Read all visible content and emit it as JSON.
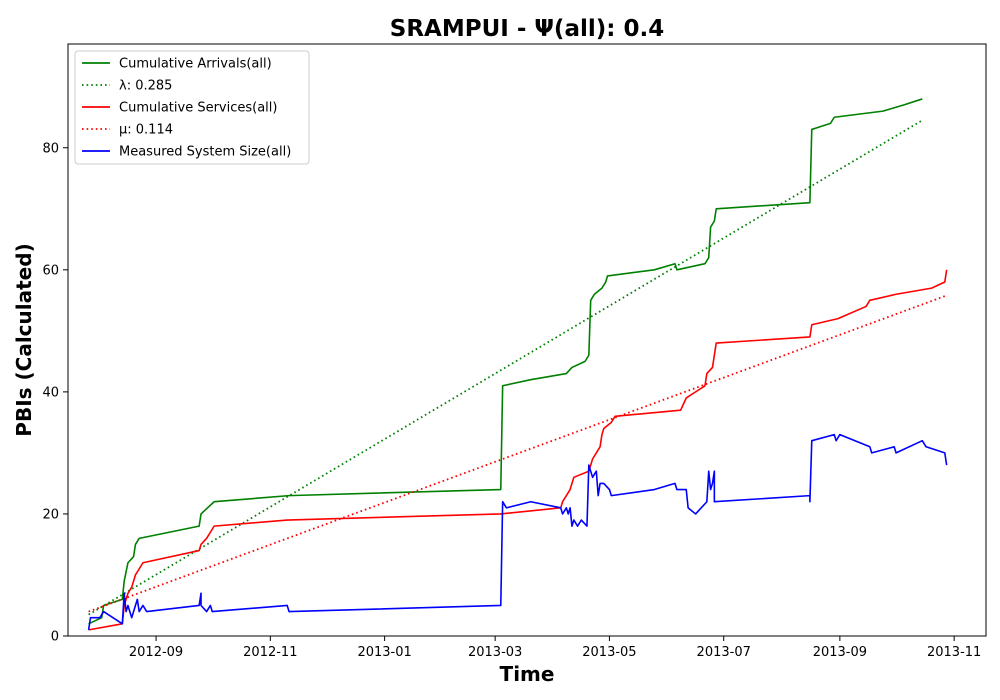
{
  "chart_data": {
    "type": "line",
    "title": "SRAMPUI -  Ψ(all): 0.4",
    "xlabel": "Time",
    "ylabel": "PBIs (Calculated)",
    "x_ticks": [
      "2012-09",
      "2012-11",
      "2013-01",
      "2013-03",
      "2013-05",
      "2013-07",
      "2013-09",
      "2013-11"
    ],
    "y_ticks": [
      "0",
      "20",
      "40",
      "60",
      "80"
    ],
    "xlim": [
      "2012-07-16",
      "2013-11-18"
    ],
    "ylim": [
      0,
      97
    ],
    "legend_position": "upper-left",
    "grid": false,
    "series": [
      {
        "name": "Cumulative Arrivals(all)",
        "color": "#008000",
        "style": "solid",
        "points": [
          [
            "2012-07-27",
            2
          ],
          [
            "2012-08-03",
            3
          ],
          [
            "2012-08-04",
            5
          ],
          [
            "2012-08-14",
            6
          ],
          [
            "2012-08-15",
            9
          ],
          [
            "2012-08-17",
            12
          ],
          [
            "2012-08-20",
            13
          ],
          [
            "2012-08-21",
            15
          ],
          [
            "2012-08-23",
            16
          ],
          [
            "2012-09-24",
            18
          ],
          [
            "2012-09-25",
            20
          ],
          [
            "2012-10-02",
            22
          ],
          [
            "2012-11-11",
            23
          ],
          [
            "2013-03-04",
            24
          ],
          [
            "2013-03-05",
            41
          ],
          [
            "2013-03-20",
            42
          ],
          [
            "2013-04-08",
            43
          ],
          [
            "2013-04-11",
            44
          ],
          [
            "2013-04-18",
            45
          ],
          [
            "2013-04-20",
            46
          ],
          [
            "2013-04-21",
            55
          ],
          [
            "2013-04-23",
            56
          ],
          [
            "2013-04-27",
            57
          ],
          [
            "2013-04-29",
            58
          ],
          [
            "2013-04-30",
            59
          ],
          [
            "2013-05-25",
            60
          ],
          [
            "2013-06-05",
            61
          ],
          [
            "2013-06-06",
            60
          ],
          [
            "2013-06-21",
            61
          ],
          [
            "2013-06-23",
            62
          ],
          [
            "2013-06-24",
            67
          ],
          [
            "2013-06-26",
            68
          ],
          [
            "2013-06-27",
            70
          ],
          [
            "2013-08-16",
            71
          ],
          [
            "2013-08-17",
            83
          ],
          [
            "2013-08-27",
            84
          ],
          [
            "2013-08-29",
            85
          ],
          [
            "2013-09-24",
            86
          ],
          [
            "2013-10-05",
            87
          ],
          [
            "2013-10-15",
            88
          ]
        ]
      },
      {
        "name": "λ: 0.285",
        "color": "#008000",
        "style": "dotted",
        "points": [
          [
            "2012-07-27",
            3.5
          ],
          [
            "2013-10-15",
            84.5
          ]
        ]
      },
      {
        "name": "Cumulative Services(all)",
        "color": "#ff0000",
        "style": "solid",
        "points": [
          [
            "2012-07-27",
            1
          ],
          [
            "2012-08-14",
            2
          ],
          [
            "2012-08-15",
            5
          ],
          [
            "2012-08-17",
            7
          ],
          [
            "2012-08-19",
            8
          ],
          [
            "2012-08-21",
            10
          ],
          [
            "2012-08-23",
            11
          ],
          [
            "2012-08-25",
            12
          ],
          [
            "2012-09-24",
            14
          ],
          [
            "2012-09-25",
            15
          ],
          [
            "2012-09-28",
            16
          ],
          [
            "2012-09-30",
            17
          ],
          [
            "2012-10-02",
            18
          ],
          [
            "2012-11-10",
            19
          ],
          [
            "2013-03-04",
            20
          ],
          [
            "2013-04-05",
            21
          ],
          [
            "2013-04-06",
            22
          ],
          [
            "2013-04-10",
            24
          ],
          [
            "2013-04-12",
            26
          ],
          [
            "2013-04-20",
            27
          ],
          [
            "2013-04-22",
            29
          ],
          [
            "2013-04-26",
            31
          ],
          [
            "2013-04-27",
            33
          ],
          [
            "2013-04-28",
            34
          ],
          [
            "2013-05-02",
            35
          ],
          [
            "2013-05-04",
            36
          ],
          [
            "2013-06-08",
            37
          ],
          [
            "2013-06-11",
            39
          ],
          [
            "2013-06-16",
            40
          ],
          [
            "2013-06-21",
            41
          ],
          [
            "2013-06-22",
            43
          ],
          [
            "2013-06-25",
            44
          ],
          [
            "2013-06-27",
            48
          ],
          [
            "2013-08-16",
            49
          ],
          [
            "2013-08-17",
            51
          ],
          [
            "2013-08-31",
            52
          ],
          [
            "2013-09-15",
            54
          ],
          [
            "2013-09-17",
            55
          ],
          [
            "2013-10-01",
            56
          ],
          [
            "2013-10-20",
            57
          ],
          [
            "2013-10-27",
            58
          ],
          [
            "2013-10-28",
            60
          ]
        ]
      },
      {
        "name": "μ: 0.114",
        "color": "#ff0000",
        "style": "dotted",
        "points": [
          [
            "2012-07-27",
            4
          ],
          [
            "2013-10-28",
            55.8
          ]
        ]
      },
      {
        "name": "Measured System Size(all)",
        "color": "#0000ff",
        "style": "solid",
        "points": [
          [
            "2012-07-27",
            1
          ],
          [
            "2012-07-28",
            3
          ],
          [
            "2012-08-02",
            3
          ],
          [
            "2012-08-04",
            4
          ],
          [
            "2012-08-14",
            2
          ],
          [
            "2012-08-15",
            7
          ],
          [
            "2012-08-16",
            4
          ],
          [
            "2012-08-17",
            5
          ],
          [
            "2012-08-19",
            3
          ],
          [
            "2012-08-21",
            5
          ],
          [
            "2012-08-22",
            6
          ],
          [
            "2012-08-23",
            4
          ],
          [
            "2012-08-25",
            5
          ],
          [
            "2012-08-27",
            4
          ],
          [
            "2012-09-24",
            5
          ],
          [
            "2012-09-25",
            7
          ],
          [
            "2012-09-25",
            5
          ],
          [
            "2012-09-28",
            4
          ],
          [
            "2012-09-30",
            5
          ],
          [
            "2012-10-01",
            4
          ],
          [
            "2012-11-10",
            5
          ],
          [
            "2012-11-11",
            4
          ],
          [
            "2013-03-04",
            5
          ],
          [
            "2013-03-05",
            22
          ],
          [
            "2013-03-07",
            21
          ],
          [
            "2013-03-20",
            22
          ],
          [
            "2013-04-05",
            21
          ],
          [
            "2013-04-06",
            20
          ],
          [
            "2013-04-08",
            21
          ],
          [
            "2013-04-09",
            20
          ],
          [
            "2013-04-10",
            21
          ],
          [
            "2013-04-11",
            18
          ],
          [
            "2013-04-12",
            19
          ],
          [
            "2013-04-14",
            18
          ],
          [
            "2013-04-16",
            19
          ],
          [
            "2013-04-19",
            18
          ],
          [
            "2013-04-20",
            28
          ],
          [
            "2013-04-22",
            26
          ],
          [
            "2013-04-24",
            27
          ],
          [
            "2013-04-25",
            23
          ],
          [
            "2013-04-26",
            25
          ],
          [
            "2013-04-28",
            25
          ],
          [
            "2013-05-01",
            24
          ],
          [
            "2013-05-02",
            23
          ],
          [
            "2013-05-25",
            24
          ],
          [
            "2013-06-05",
            25
          ],
          [
            "2013-06-06",
            24
          ],
          [
            "2013-06-11",
            24
          ],
          [
            "2013-06-12",
            21
          ],
          [
            "2013-06-16",
            20
          ],
          [
            "2013-06-22",
            22
          ],
          [
            "2013-06-23",
            27
          ],
          [
            "2013-06-24",
            24
          ],
          [
            "2013-06-25",
            25
          ],
          [
            "2013-06-26",
            27
          ],
          [
            "2013-06-26",
            22
          ],
          [
            "2013-08-16",
            23
          ],
          [
            "2013-08-16",
            22
          ],
          [
            "2013-08-17",
            32
          ],
          [
            "2013-08-29",
            33
          ],
          [
            "2013-08-30",
            32
          ],
          [
            "2013-09-01",
            33
          ],
          [
            "2013-09-17",
            31
          ],
          [
            "2013-09-18",
            30
          ],
          [
            "2013-09-30",
            31
          ],
          [
            "2013-10-01",
            30
          ],
          [
            "2013-10-15",
            32
          ],
          [
            "2013-10-17",
            31
          ],
          [
            "2013-10-27",
            30
          ],
          [
            "2013-10-28",
            28
          ]
        ]
      }
    ]
  }
}
